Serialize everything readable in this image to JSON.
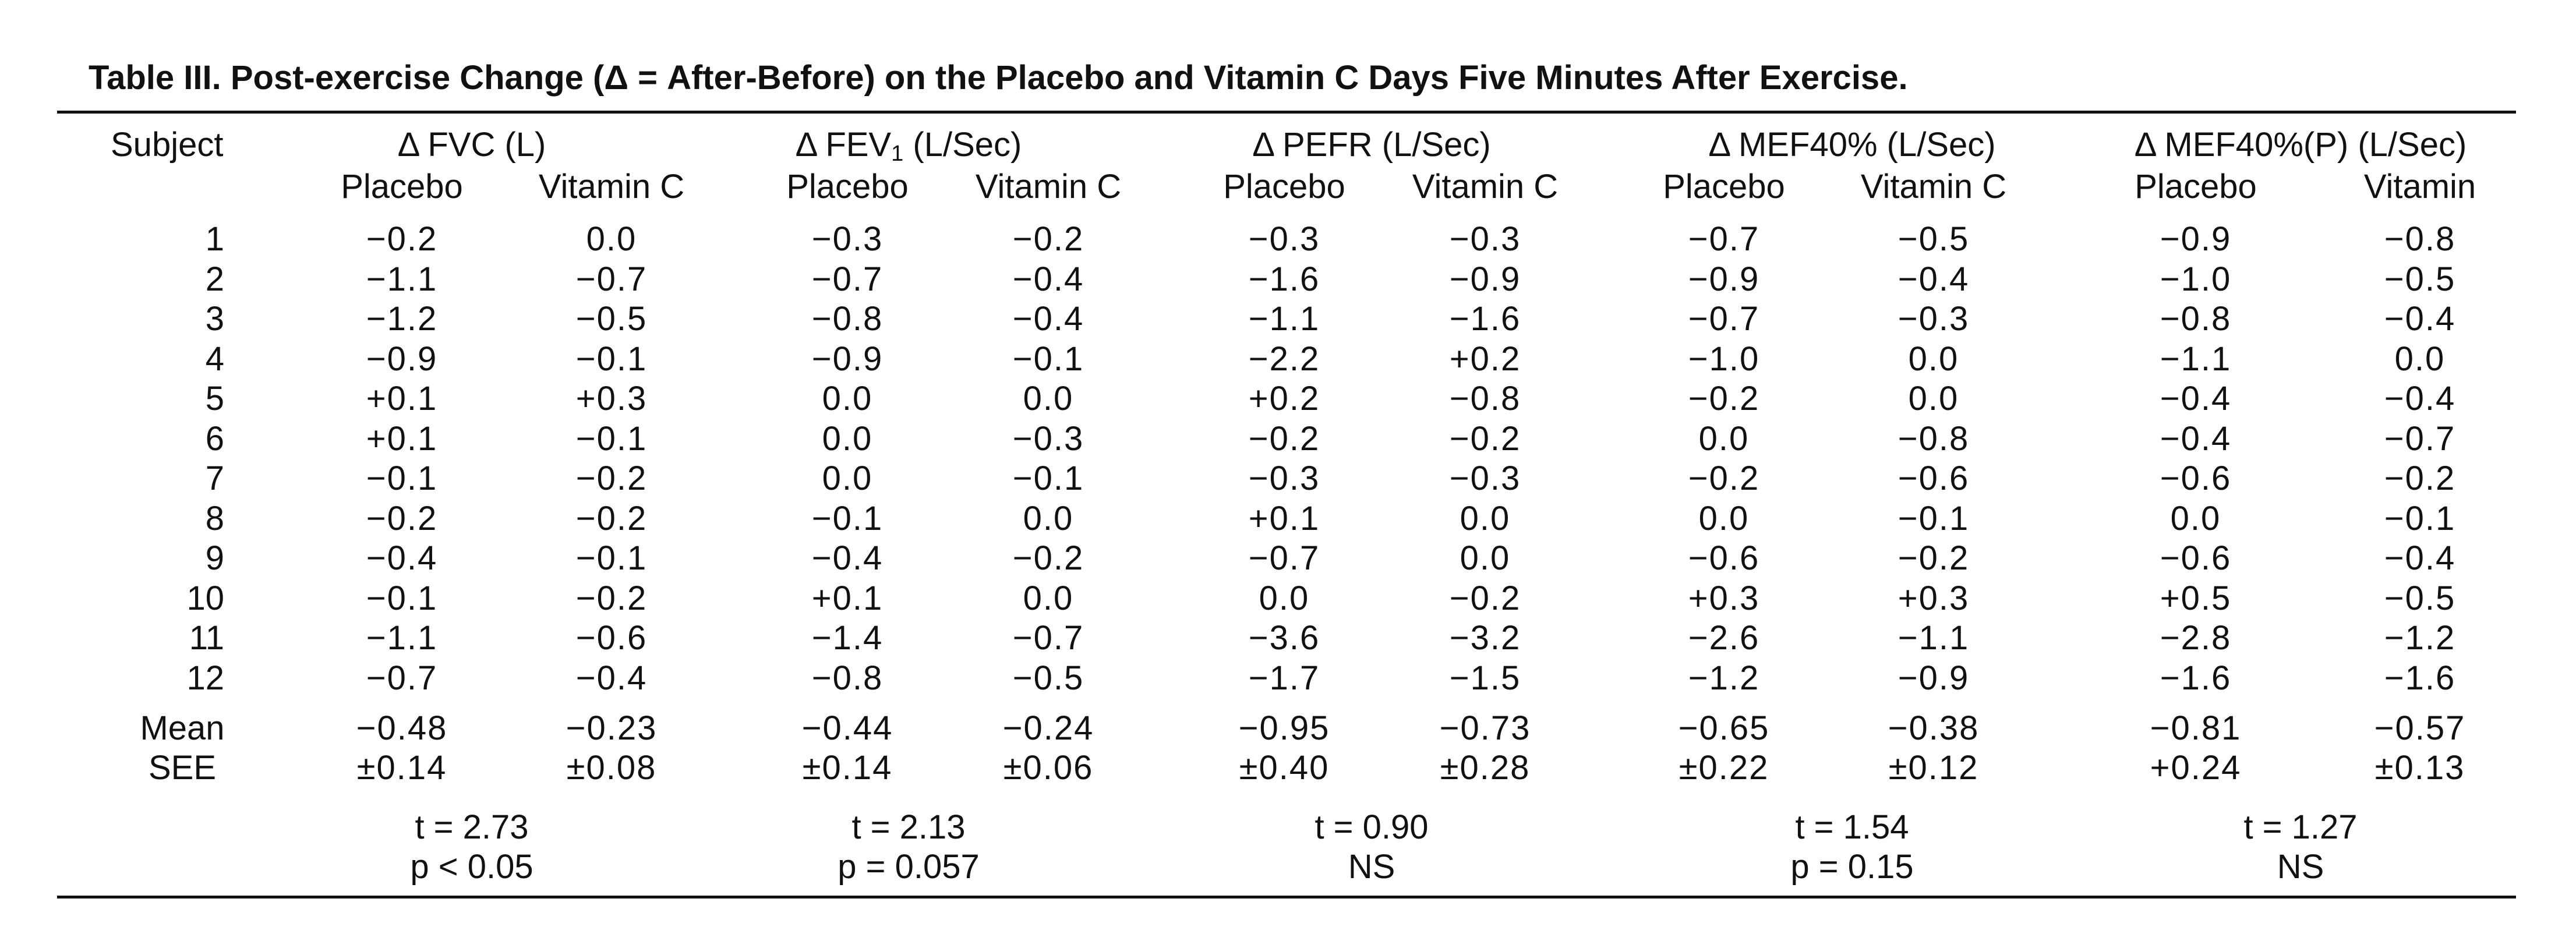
{
  "caption": "Table III.  Post-exercise Change (Δ = After-Before) on the Placebo and Vitamin C Days Five Minutes After Exercise.",
  "subject_header": "Subject",
  "groups": [
    {
      "pre": "Δ FVC (L)",
      "sub": "",
      "post": "",
      "col1": "Placebo",
      "col2": "Vitamin C",
      "t": "t = 2.73",
      "p": "p < 0.05"
    },
    {
      "pre": "Δ FEV",
      "sub": "1",
      "post": " (L/Sec)",
      "col1": "Placebo",
      "col2": "Vitamin C",
      "t": "t = 2.13",
      "p": "p = 0.057"
    },
    {
      "pre": "Δ PEFR (L/Sec)",
      "sub": "",
      "post": "",
      "col1": "Placebo",
      "col2": "Vitamin C",
      "t": "t = 0.90",
      "p": "NS"
    },
    {
      "pre": "Δ MEF40% (L/Sec)",
      "sub": "",
      "post": "",
      "col1": "Placebo",
      "col2": "Vitamin C",
      "t": "t = 1.54",
      "p": "p = 0.15"
    },
    {
      "pre": "Δ MEF40%(P) (L/Sec)",
      "sub": "",
      "post": "",
      "col1": "Placebo",
      "col2": "Vitamin",
      "t": "t = 1.27",
      "p": "NS"
    }
  ],
  "rows": [
    {
      "subject": "1",
      "values": [
        "−0.2",
        "0.0",
        "−0.3",
        "−0.2",
        "−0.3",
        "−0.3",
        "−0.7",
        "−0.5",
        "−0.9",
        "−0.8"
      ]
    },
    {
      "subject": "2",
      "values": [
        "−1.1",
        "−0.7",
        "−0.7",
        "−0.4",
        "−1.6",
        "−0.9",
        "−0.9",
        "−0.4",
        "−1.0",
        "−0.5"
      ]
    },
    {
      "subject": "3",
      "values": [
        "−1.2",
        "−0.5",
        "−0.8",
        "−0.4",
        "−1.1",
        "−1.6",
        "−0.7",
        "−0.3",
        "−0.8",
        "−0.4"
      ]
    },
    {
      "subject": "4",
      "values": [
        "−0.9",
        "−0.1",
        "−0.9",
        "−0.1",
        "−2.2",
        "+0.2",
        "−1.0",
        "0.0",
        "−1.1",
        "0.0"
      ]
    },
    {
      "subject": "5",
      "values": [
        "+0.1",
        "+0.3",
        "0.0",
        "0.0",
        "+0.2",
        "−0.8",
        "−0.2",
        "0.0",
        "−0.4",
        "−0.4"
      ]
    },
    {
      "subject": "6",
      "values": [
        "+0.1",
        "−0.1",
        "0.0",
        "−0.3",
        "−0.2",
        "−0.2",
        "0.0",
        "−0.8",
        "−0.4",
        "−0.7"
      ]
    },
    {
      "subject": "7",
      "values": [
        "−0.1",
        "−0.2",
        "0.0",
        "−0.1",
        "−0.3",
        "−0.3",
        "−0.2",
        "−0.6",
        "−0.6",
        "−0.2"
      ]
    },
    {
      "subject": "8",
      "values": [
        "−0.2",
        "−0.2",
        "−0.1",
        "0.0",
        "+0.1",
        "0.0",
        "0.0",
        "−0.1",
        "0.0",
        "−0.1"
      ]
    },
    {
      "subject": "9",
      "values": [
        "−0.4",
        "−0.1",
        "−0.4",
        "−0.2",
        "−0.7",
        "0.0",
        "−0.6",
        "−0.2",
        "−0.6",
        "−0.4"
      ]
    },
    {
      "subject": "10",
      "values": [
        "−0.1",
        "−0.2",
        "+0.1",
        "0.0",
        "0.0",
        "−0.2",
        "+0.3",
        "+0.3",
        "+0.5",
        "−0.5"
      ]
    },
    {
      "subject": "11",
      "values": [
        "−1.1",
        "−0.6",
        "−1.4",
        "−0.7",
        "−3.6",
        "−3.2",
        "−2.6",
        "−1.1",
        "−2.8",
        "−1.2"
      ]
    },
    {
      "subject": "12",
      "values": [
        "−0.7",
        "−0.4",
        "−0.8",
        "−0.5",
        "−1.7",
        "−1.5",
        "−1.2",
        "−0.9",
        "−1.6",
        "−1.6"
      ]
    }
  ],
  "summary": [
    {
      "label": "Mean",
      "values": [
        "−0.48",
        "−0.23",
        "−0.44",
        "−0.24",
        "−0.95",
        "−0.73",
        "−0.65",
        "−0.38",
        "−0.81",
        "−0.57"
      ]
    },
    {
      "label": "SEE",
      "values": [
        "±0.14",
        "±0.08",
        "±0.14",
        "±0.06",
        "±0.40",
        "±0.28",
        "±0.22",
        "±0.12",
        "+0.24",
        "±0.13"
      ]
    }
  ]
}
